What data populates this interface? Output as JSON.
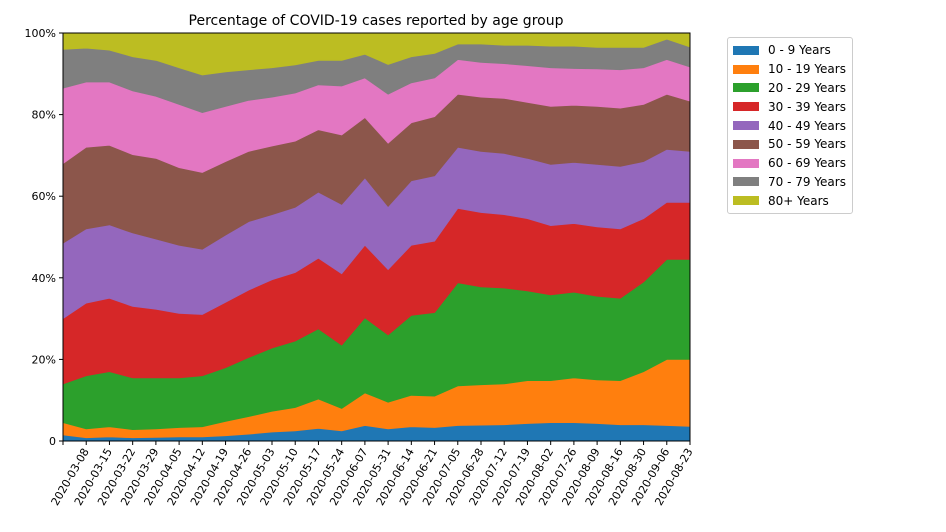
{
  "chart_data": {
    "type": "area",
    "stacked": true,
    "title": "Percentage of COVID-19 cases reported by age group",
    "xlabel": "",
    "ylabel": "",
    "ylim": [
      0,
      100
    ],
    "yticks": [
      0,
      20,
      40,
      60,
      80,
      100
    ],
    "ytick_labels": [
      "0",
      "20%",
      "40%",
      "60%",
      "80%",
      "100%"
    ],
    "grid": false,
    "legend_position": "outside-top-right",
    "x": [
      "",
      "2020-03-08",
      "2020-03-15",
      "2020-03-22",
      "2020-03-29",
      "2020-04-05",
      "2020-04-12",
      "2020-04-19",
      "2020-04-26",
      "2020-05-03",
      "2020-05-10",
      "2020-05-17",
      "2020-05-24",
      "2020-06-07",
      "2020-05-31",
      "2020-06-14",
      "2020-06-21",
      "2020-07-05",
      "2020-06-28",
      "2020-07-12",
      "2020-07-19",
      "2020-08-02",
      "2020-07-26",
      "2020-08-09",
      "2020-08-16",
      "2020-08-30",
      "2020-09-06",
      "2020-08-23"
    ],
    "series": [
      {
        "name": "0 - 9 Years",
        "color": "#1f77b4",
        "values": [
          1.5,
          0.8,
          1.0,
          0.8,
          0.9,
          1.0,
          1.0,
          1.3,
          1.7,
          2.2,
          2.5,
          3.1,
          2.5,
          3.8,
          3.0,
          3.5,
          3.3,
          3.8,
          3.9,
          4.0,
          4.3,
          4.5,
          4.5,
          4.3,
          4.0,
          4.0,
          3.8,
          3.6
        ]
      },
      {
        "name": "10 - 19 Years",
        "color": "#ff7f0e",
        "values": [
          3.0,
          2.2,
          2.5,
          2.0,
          2.1,
          2.3,
          2.5,
          3.5,
          4.3,
          5.1,
          5.7,
          7.2,
          5.5,
          8.0,
          6.5,
          7.7,
          7.7,
          9.7,
          9.9,
          10.0,
          10.5,
          10.3,
          11.0,
          10.7,
          10.8,
          13.0,
          16.2,
          16.4
        ]
      },
      {
        "name": "20 - 29 Years",
        "color": "#2ca02c",
        "values": [
          9.5,
          13.0,
          13.5,
          12.7,
          12.5,
          12.2,
          12.5,
          13.2,
          14.5,
          15.5,
          16.3,
          17.2,
          15.5,
          18.4,
          16.5,
          19.6,
          20.5,
          25.3,
          24.0,
          23.5,
          22.0,
          21.0,
          21.0,
          20.5,
          20.2,
          22.0,
          24.5,
          24.5
        ]
      },
      {
        "name": "30 - 39 Years",
        "color": "#d62728",
        "values": [
          16.0,
          17.8,
          18.0,
          17.5,
          16.8,
          15.8,
          15.0,
          16.0,
          16.5,
          16.7,
          16.8,
          17.3,
          17.5,
          17.8,
          16.0,
          17.2,
          17.5,
          18.2,
          18.2,
          18.0,
          17.7,
          17.0,
          16.8,
          17.0,
          17.0,
          15.5,
          14.0,
          14.0
        ]
      },
      {
        "name": "40 - 49 Years",
        "color": "#9467bd",
        "values": [
          18.5,
          18.2,
          18.0,
          18.0,
          17.2,
          16.7,
          16.0,
          16.5,
          16.8,
          16.0,
          16.0,
          16.2,
          17.0,
          16.5,
          15.5,
          15.8,
          16.0,
          15.0,
          15.0,
          15.0,
          14.8,
          15.0,
          15.0,
          15.3,
          15.3,
          14.0,
          13.0,
          12.5
        ]
      },
      {
        "name": "50 - 59 Years",
        "color": "#8c564b",
        "values": [
          19.5,
          20.0,
          19.5,
          19.2,
          19.8,
          19.0,
          18.8,
          18.0,
          17.2,
          16.8,
          16.2,
          15.3,
          17.0,
          14.8,
          15.5,
          14.2,
          14.5,
          13.0,
          13.3,
          13.5,
          13.7,
          14.2,
          14.0,
          14.2,
          14.3,
          14.0,
          13.5,
          12.3
        ]
      },
      {
        "name": "60 - 69 Years",
        "color": "#e377c2",
        "values": [
          18.5,
          16.0,
          15.5,
          15.6,
          15.2,
          15.5,
          14.7,
          13.5,
          12.5,
          12.0,
          11.8,
          11.0,
          12.0,
          9.7,
          12.0,
          9.8,
          9.5,
          8.5,
          8.5,
          8.5,
          9.0,
          9.5,
          9.0,
          9.2,
          9.4,
          9.0,
          8.5,
          8.4
        ]
      },
      {
        "name": "70 - 79 Years",
        "color": "#7f7f7f",
        "values": [
          9.5,
          8.3,
          7.8,
          8.4,
          8.8,
          9.0,
          9.2,
          8.5,
          7.5,
          7.2,
          6.9,
          6.0,
          6.3,
          5.8,
          7.3,
          6.4,
          6.0,
          3.8,
          4.5,
          4.5,
          5.0,
          5.3,
          5.5,
          5.3,
          5.5,
          5.0,
          5.0,
          4.9
        ]
      },
      {
        "name": "80+ Years",
        "color": "#bcbd22",
        "values": [
          4.0,
          3.7,
          4.2,
          5.8,
          6.7,
          8.5,
          10.3,
          9.5,
          9.0,
          8.5,
          7.8,
          6.7,
          6.7,
          5.2,
          7.7,
          5.8,
          5.0,
          2.7,
          2.7,
          3.0,
          3.0,
          3.2,
          3.2,
          3.5,
          3.5,
          3.5,
          3.5,
          3.4
        ]
      }
    ]
  }
}
